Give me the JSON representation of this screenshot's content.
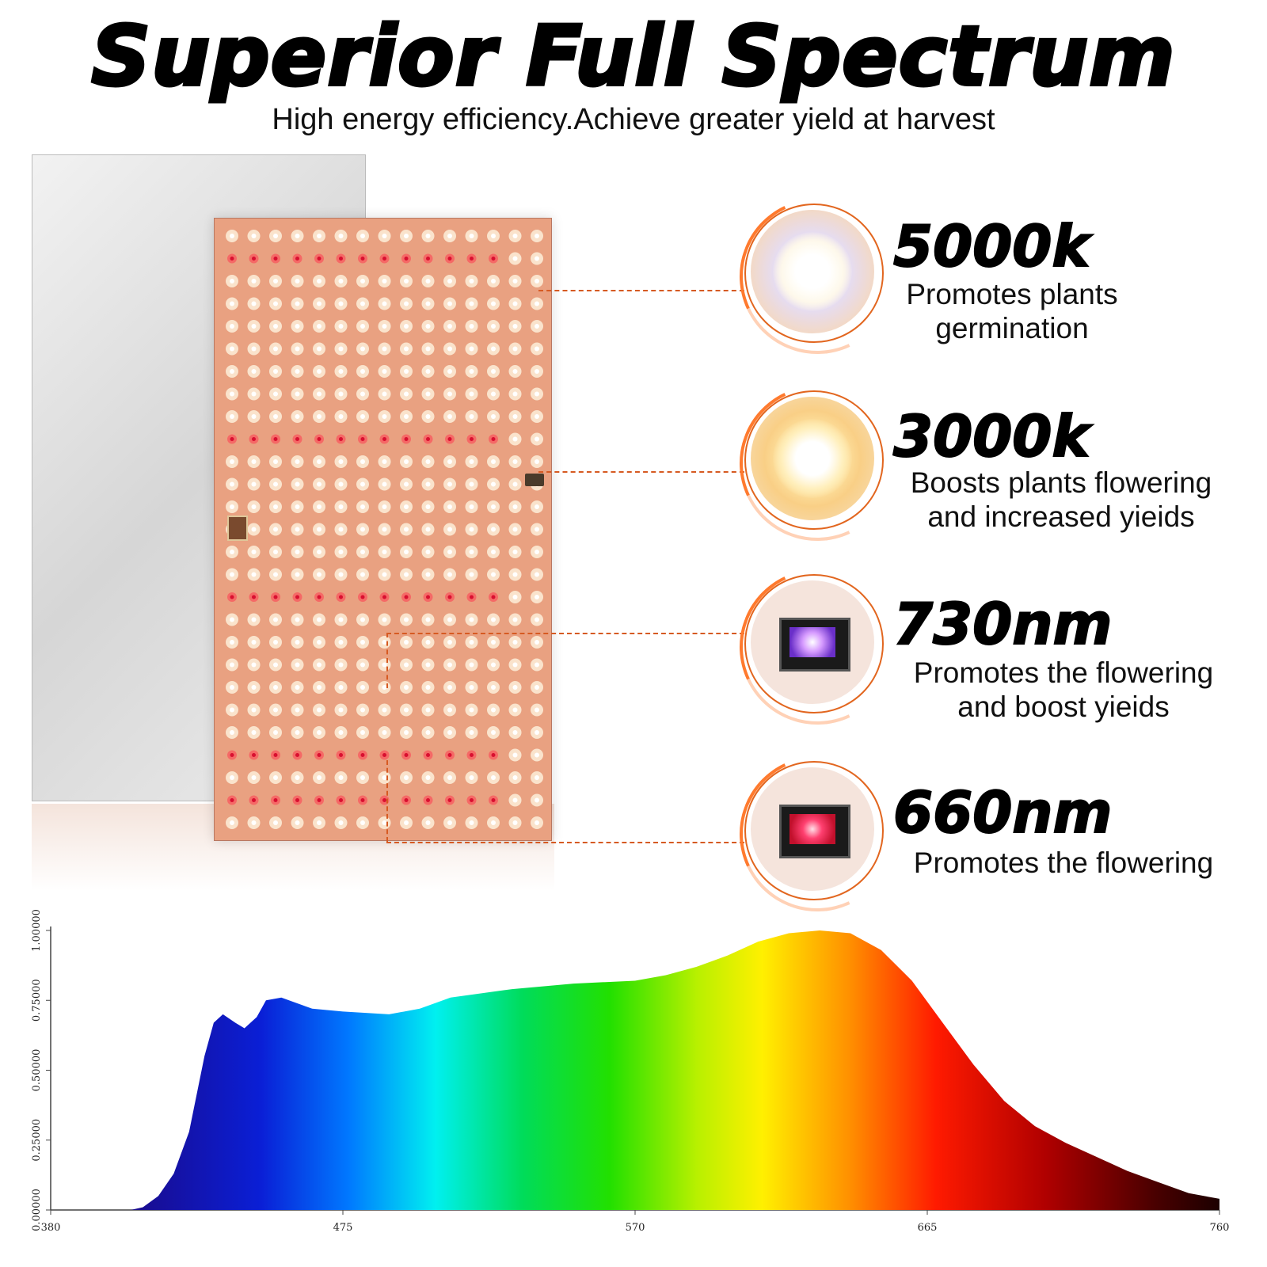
{
  "header": {
    "title": "Superior Full Spectrum",
    "subtitle": "High energy efficiency.Achieve greater yield at harvest"
  },
  "colors": {
    "leader_line": "#d65a22",
    "badge_ring": "#e2661f",
    "board": "#e9a181"
  },
  "specs": [
    {
      "heading": "5000k",
      "lines": [
        "Promotes plants",
        "germination"
      ],
      "icon": "white-led-icon"
    },
    {
      "heading": "3000k",
      "lines": [
        "Boosts plants flowering",
        "and increased yieids"
      ],
      "icon": "warm-white-led-icon"
    },
    {
      "heading": "730nm",
      "lines": [
        "Promotes the flowering",
        "and boost yieids"
      ],
      "icon": "far-red-led-icon"
    },
    {
      "heading": "660nm",
      "lines": [
        "Promotes the flowering"
      ],
      "icon": "red-led-icon"
    }
  ],
  "chart_data": {
    "type": "area",
    "title": "",
    "xlabel": "",
    "ylabel": "",
    "xlim": [
      380,
      760
    ],
    "ylim": [
      0,
      1
    ],
    "x_ticks": [
      "380",
      "475",
      "570",
      "665",
      "760"
    ],
    "y_ticks": [
      "0.00000",
      "0.25000",
      "0.50000",
      "0.75000",
      "1.00000"
    ],
    "grid": false,
    "legend": "none",
    "fill": "visible-spectrum gradient",
    "series": [
      {
        "x": [
          406,
          410,
          415,
          420,
          425,
          430,
          433,
          436,
          440,
          443,
          447,
          450,
          455,
          460,
          465,
          475,
          490,
          500,
          510,
          530,
          550,
          570,
          580,
          590,
          600,
          610,
          620,
          630,
          640,
          650,
          660,
          670,
          680,
          690,
          700,
          710,
          720,
          730,
          740,
          750,
          760
        ],
        "y": [
          0.0,
          0.01,
          0.05,
          0.13,
          0.28,
          0.55,
          0.67,
          0.7,
          0.67,
          0.65,
          0.69,
          0.75,
          0.76,
          0.74,
          0.72,
          0.71,
          0.7,
          0.72,
          0.76,
          0.79,
          0.81,
          0.82,
          0.84,
          0.87,
          0.91,
          0.96,
          0.99,
          1.0,
          0.99,
          0.93,
          0.82,
          0.67,
          0.52,
          0.39,
          0.3,
          0.24,
          0.19,
          0.14,
          0.1,
          0.06,
          0.04
        ]
      }
    ]
  }
}
